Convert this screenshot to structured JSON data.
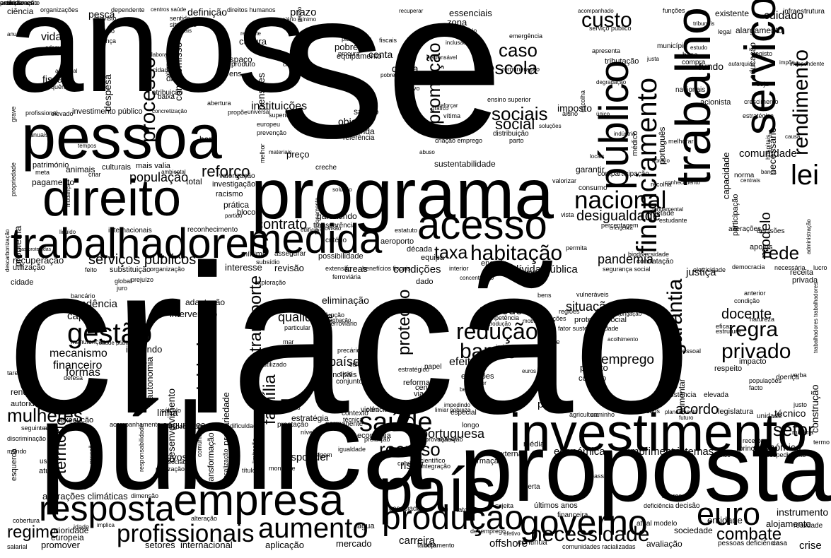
{
  "words": [
    {
      "text": "criação"
    },
    {
      "text": "se"
    },
    {
      "text": "anos"
    },
    {
      "text": "pública"
    },
    {
      "text": "proposta"
    },
    {
      "text": "programa"
    },
    {
      "text": "pessoa"
    },
    {
      "text": "direito"
    },
    {
      "text": "serviço"
    },
    {
      "text": "trabalho"
    },
    {
      "text": "país"
    },
    {
      "text": "investimento"
    },
    {
      "text": "trabalhadores"
    },
    {
      "text": "medida"
    },
    {
      "text": "acesso"
    },
    {
      "text": "empresa"
    },
    {
      "text": "resposta"
    },
    {
      "text": "público"
    },
    {
      "text": "produção"
    },
    {
      "text": "governo"
    },
    {
      "text": "aumento"
    },
    {
      "text": "profissionais"
    },
    {
      "text": "necessidade"
    },
    {
      "text": "euro"
    },
    {
      "text": "saúde"
    },
    {
      "text": "redução"
    },
    {
      "text": "gestão"
    },
    {
      "text": "financiamento"
    },
    {
      "text": "lei"
    },
    {
      "text": "nacional"
    },
    {
      "text": "rendimento"
    },
    {
      "text": "habitação"
    },
    {
      "text": "garantia"
    },
    {
      "text": "banco"
    },
    {
      "text": "regra"
    },
    {
      "text": "privado"
    },
    {
      "text": "custo"
    },
    {
      "text": "sociais"
    },
    {
      "text": "processo"
    },
    {
      "text": "setor"
    },
    {
      "text": "rede"
    },
    {
      "text": "mulheres"
    },
    {
      "text": "regime"
    },
    {
      "text": "recurso"
    },
    {
      "text": "combate"
    },
    {
      "text": "atividade"
    },
    {
      "text": "transporte"
    },
    {
      "text": "família"
    },
    {
      "text": "promoção"
    },
    {
      "text": "proteção"
    },
    {
      "text": "caso"
    },
    {
      "text": "escola"
    },
    {
      "text": "social"
    },
    {
      "text": "taxa"
    },
    {
      "text": "contrato"
    },
    {
      "text": "reforço"
    },
    {
      "text": "população"
    },
    {
      "text": "serviços públicos"
    },
    {
      "text": "modelo"
    },
    {
      "text": "acordo"
    },
    {
      "text": "território"
    },
    {
      "text": "docente"
    },
    {
      "text": "emprego"
    },
    {
      "text": "portuguesa"
    },
    {
      "text": "países"
    },
    {
      "text": "efeito"
    },
    {
      "text": "desigualdade"
    },
    {
      "text": "pandemia"
    },
    {
      "text": "situação"
    },
    {
      "text": "período"
    },
    {
      "text": "qualidade"
    },
    {
      "text": "eliminação"
    },
    {
      "text": "mecanismo"
    },
    {
      "text": "financeiro"
    },
    {
      "text": "formas"
    },
    {
      "text": "dependência"
    },
    {
      "text": "capital"
    },
    {
      "text": "crise"
    },
    {
      "text": "comunidade"
    },
    {
      "text": "condições"
    },
    {
      "text": "dívida pública"
    },
    {
      "text": "justiça"
    },
    {
      "text": "plano"
    },
    {
      "text": "económica"
    },
    {
      "text": "cumprimento"
    },
    {
      "text": "sistemas"
    },
    {
      "text": "económico"
    },
    {
      "text": "técnico"
    },
    {
      "text": "construção"
    },
    {
      "text": "instrumento"
    },
    {
      "text": "alojamento"
    },
    {
      "text": "carreira"
    },
    {
      "text": "offshore"
    },
    {
      "text": "mercado"
    },
    {
      "text": "aplicação"
    },
    {
      "text": "internacional"
    },
    {
      "text": "setores"
    },
    {
      "text": "promover"
    },
    {
      "text": "europeia"
    },
    {
      "text": "prioridade"
    },
    {
      "text": "alterações climáticas"
    },
    {
      "text": "entidade"
    },
    {
      "text": "sociedade"
    },
    {
      "text": "avaliação"
    },
    {
      "text": "responder"
    },
    {
      "text": "risco"
    },
    {
      "text": "ativos"
    },
    {
      "text": "segurança"
    },
    {
      "text": "linha"
    },
    {
      "text": "autonomia"
    },
    {
      "text": "desenvolvimento"
    },
    {
      "text": "precariedade"
    },
    {
      "text": "transformação"
    },
    {
      "text": "incluindo"
    },
    {
      "text": "intervenção"
    },
    {
      "text": "adaptação"
    },
    {
      "text": "revisão"
    },
    {
      "text": "interesse"
    },
    {
      "text": "áreas"
    },
    {
      "text": "recuperação"
    },
    {
      "text": "utilização"
    },
    {
      "text": "substituição"
    },
    {
      "text": "mínimo"
    },
    {
      "text": "reconhecimento"
    },
    {
      "text": "internacionais"
    },
    {
      "text": "problema"
    },
    {
      "text": "pagamento"
    },
    {
      "text": "animais"
    },
    {
      "text": "culturais"
    },
    {
      "text": "mais valia"
    },
    {
      "text": "património"
    },
    {
      "text": "total"
    },
    {
      "text": "investigação"
    },
    {
      "text": "racismo"
    },
    {
      "text": "prática"
    },
    {
      "text": "bloco"
    },
    {
      "text": "preço"
    },
    {
      "text": "garantindo"
    },
    {
      "text": "transparência"
    },
    {
      "text": "instituições"
    },
    {
      "text": "salário"
    },
    {
      "text": "objetivo"
    },
    {
      "text": "venda"
    },
    {
      "text": "referência"
    },
    {
      "text": "compromisso"
    },
    {
      "text": "despesa"
    },
    {
      "text": "fiscal"
    },
    {
      "text": "vida"
    },
    {
      "text": "meios"
    },
    {
      "text": "ciência"
    },
    {
      "text": "pesca"
    },
    {
      "text": "definição"
    },
    {
      "text": "prazo"
    },
    {
      "text": "cultura"
    },
    {
      "text": "espaço"
    },
    {
      "text": "jovens"
    },
    {
      "text": "pensões"
    },
    {
      "text": "produto"
    },
    {
      "text": "conta"
    },
    {
      "text": "dívida"
    },
    {
      "text": "pobreza"
    },
    {
      "text": "equipamento"
    },
    {
      "text": "essenciais"
    },
    {
      "text": "zona"
    },
    {
      "text": "imposto"
    },
    {
      "text": "garantir"
    },
    {
      "text": "consumo"
    },
    {
      "text": "cuidado"
    },
    {
      "text": "fundo"
    },
    {
      "text": "educação"
    },
    {
      "text": "capacidade"
    },
    {
      "text": "participação"
    },
    {
      "text": "necessário"
    },
    {
      "text": "apoios"
    },
    {
      "text": "receita"
    },
    {
      "text": "privada"
    },
    {
      "text": "corte"
    },
    {
      "text": "sustentabilidade"
    },
    {
      "text": "distribuição"
    },
    {
      "text": "dado"
    },
    {
      "text": "energia"
    },
    {
      "text": "equipa"
    },
    {
      "text": "década"
    },
    {
      "text": "aeroporto"
    },
    {
      "text": "reforma"
    },
    {
      "text": "centro"
    },
    {
      "text": "via"
    },
    {
      "text": "relatório"
    },
    {
      "text": "conjunto"
    },
    {
      "text": "principais"
    },
    {
      "text": "emissões"
    },
    {
      "text": "papel"
    },
    {
      "text": "projeto"
    },
    {
      "text": "controlo"
    },
    {
      "text": "aumentar"
    },
    {
      "text": "respeito"
    },
    {
      "text": "impacto"
    },
    {
      "text": "elevada"
    },
    {
      "text": "existência"
    },
    {
      "text": "contexto"
    },
    {
      "text": "estratégia"
    },
    {
      "text": "permanente"
    },
    {
      "text": "prestação"
    },
    {
      "text": "longo"
    },
    {
      "text": "economia"
    },
    {
      "text": "violência"
    },
    {
      "text": "especial"
    },
    {
      "text": "formação"
    },
    {
      "text": "externa"
    },
    {
      "text": "média"
    },
    {
      "text": "oferta"
    },
    {
      "text": "legislatura"
    },
    {
      "text": "unidade"
    },
    {
      "text": "princípio"
    },
    {
      "text": "recente"
    },
    {
      "text": "termo"
    },
    {
      "text": "fatores"
    },
    {
      "text": "associada"
    },
    {
      "text": "água"
    },
    {
      "text": "últimos anos"
    },
    {
      "text": "financeira"
    },
    {
      "text": "continua"
    },
    {
      "text": "tabela"
    },
    {
      "text": "orçamento"
    },
    {
      "text": "comunidades racializadas"
    },
    {
      "text": "pessoas deficiência"
    },
    {
      "text": "casa"
    },
    {
      "text": "decisão"
    },
    {
      "text": "atual modelo"
    },
    {
      "text": "realidade"
    },
    {
      "text": "doença"
    },
    {
      "text": "execução"
    },
    {
      "text": "discriminação"
    },
    {
      "text": "mundo"
    },
    {
      "text": "uso"
    },
    {
      "text": "atuais"
    },
    {
      "text": "esquerda"
    },
    {
      "text": "renda"
    },
    {
      "text": "autoridade"
    },
    {
      "text": "cidade"
    },
    {
      "text": "tarefa"
    },
    {
      "text": "atribuição"
    },
    {
      "text": "baixa"
    },
    {
      "text": "dia"
    },
    {
      "text": "hora"
    },
    {
      "text": "creche"
    },
    {
      "text": "criar"
    },
    {
      "text": "meta"
    },
    {
      "text": "critério"
    },
    {
      "text": "possibilidade"
    },
    {
      "text": "assegurar"
    },
    {
      "text": "metade"
    },
    {
      "text": "norma"
    },
    {
      "text": "tributação"
    },
    {
      "text": "comparticipação"
    },
    {
      "text": "contratação"
    },
    {
      "text": "estudante"
    },
    {
      "text": "valorização"
    },
    {
      "text": "nacionais"
    },
    {
      "text": "acionista"
    },
    {
      "text": "base"
    },
    {
      "text": "compra"
    },
    {
      "text": "município"
    },
    {
      "text": "português"
    },
    {
      "text": "médico"
    },
    {
      "text": "existente"
    },
    {
      "text": "infraestrutura"
    },
    {
      "text": "alargamento"
    },
    {
      "text": "tribunais"
    },
    {
      "text": "legal"
    },
    {
      "text": "hospitais"
    },
    {
      "text": "registo"
    },
    {
      "text": "impõe"
    },
    {
      "text": "seja"
    },
    {
      "text": "crescimento"
    },
    {
      "text": "estratégica"
    },
    {
      "text": "melhorar"
    },
    {
      "text": "valores"
    },
    {
      "text": "passa"
    },
    {
      "text": "deficiência"
    },
    {
      "text": "sujeita"
    },
    {
      "text": "desemprego"
    },
    {
      "text": "efetivo"
    },
    {
      "text": "gráfico"
    },
    {
      "text": "ensino superior"
    },
    {
      "text": "procura"
    },
    {
      "text": "remuneração"
    },
    {
      "text": "emergência"
    },
    {
      "text": "agrícola"
    },
    {
      "text": "bens"
    },
    {
      "text": "vulneráveis"
    },
    {
      "text": "conversão"
    },
    {
      "text": "proteção social"
    },
    {
      "text": "habitações"
    },
    {
      "text": "regiões"
    },
    {
      "text": "assente"
    },
    {
      "text": "imigrante"
    },
    {
      "text": "escolha"
    },
    {
      "text": "pessoal"
    },
    {
      "text": "verba"
    },
    {
      "text": "populações"
    },
    {
      "text": "facto"
    },
    {
      "text": "condição"
    },
    {
      "text": "anterior"
    },
    {
      "text": "natureza"
    },
    {
      "text": "eficaz"
    },
    {
      "text": "estrutura"
    },
    {
      "text": "lucro"
    },
    {
      "text": "trabalhadores trabalhadores"
    },
    {
      "text": "justo"
    },
    {
      "text": "regionais"
    },
    {
      "text": "obra"
    },
    {
      "text": "fundamental"
    },
    {
      "text": "alterações"
    },
    {
      "text": "decisões"
    },
    {
      "text": "administração"
    },
    {
      "text": "percentagem"
    },
    {
      "text": "energética"
    },
    {
      "text": "vista"
    },
    {
      "text": "democracia"
    },
    {
      "text": "permita"
    },
    {
      "text": "biodiversidade"
    },
    {
      "text": "eletricidade"
    },
    {
      "text": "necessária"
    },
    {
      "text": "segurança social"
    },
    {
      "text": "interior"
    },
    {
      "text": "benefícios fiscais"
    },
    {
      "text": "extensão"
    },
    {
      "text": "subsídio"
    },
    {
      "text": "exploração"
    },
    {
      "text": "ferroviária"
    },
    {
      "text": "função"
    },
    {
      "text": "ferroviário"
    },
    {
      "text": "particular"
    },
    {
      "text": "mar"
    },
    {
      "text": "precário"
    },
    {
      "text": "cultural"
    },
    {
      "text": "ciclo"
    },
    {
      "text": "estratégico"
    },
    {
      "text": "utilizado"
    },
    {
      "text": "cálculo"
    },
    {
      "text": "cuidados saúde"
    },
    {
      "text": "dificuldade"
    },
    {
      "text": "técnica"
    },
    {
      "text": "níveis"
    },
    {
      "text": "igualdade"
    },
    {
      "text": "combater"
    },
    {
      "text": "origem"
    },
    {
      "text": "científico"
    },
    {
      "text": "integração"
    },
    {
      "text": "aprovação"
    },
    {
      "text": "transição"
    },
    {
      "text": "proibição"
    },
    {
      "text": "montante"
    },
    {
      "text": "título"
    },
    {
      "text": "limitação"
    },
    {
      "text": "fiscalização"
    },
    {
      "text": "comunitário"
    },
    {
      "text": "responsabilidade"
    },
    {
      "text": "associado"
    },
    {
      "text": "realização"
    },
    {
      "text": "pressão"
    },
    {
      "text": "acompanhamento"
    },
    {
      "text": "dimensão"
    },
    {
      "text": "atraso"
    },
    {
      "text": "alteração"
    },
    {
      "text": "idade"
    },
    {
      "text": "implica"
    },
    {
      "text": "cobertura"
    },
    {
      "text": "salarial"
    },
    {
      "text": "seguinte"
    },
    {
      "text": "ação"
    },
    {
      "text": "defesa"
    },
    {
      "text": "manutenção"
    },
    {
      "text": "saúde pública"
    },
    {
      "text": "bancário"
    },
    {
      "text": "prejuízo"
    },
    {
      "text": "juro"
    },
    {
      "text": "global"
    },
    {
      "text": "feito"
    },
    {
      "text": "organização"
    },
    {
      "text": "liquido"
    },
    {
      "text": "áreas protegidas"
    },
    {
      "text": "descarbonização"
    },
    {
      "text": "mudança"
    },
    {
      "text": "ambiental"
    },
    {
      "text": "propriedade"
    },
    {
      "text": "grave"
    },
    {
      "text": "anual"
    },
    {
      "text": "profissional"
    },
    {
      "text": "elevado"
    },
    {
      "text": "investimento público"
    },
    {
      "text": "concretização"
    },
    {
      "text": "propõe"
    },
    {
      "text": "universal"
    },
    {
      "text": "superior"
    },
    {
      "text": "europeu"
    },
    {
      "text": "prevenção"
    },
    {
      "text": "luta"
    },
    {
      "text": "melhor"
    },
    {
      "text": "materiais"
    },
    {
      "text": "tempos"
    },
    {
      "text": "anuais"
    },
    {
      "text": "organizações"
    },
    {
      "text": "centros saúde"
    },
    {
      "text": "dependente"
    },
    {
      "text": "direitos humanos"
    },
    {
      "text": "salário mínimo"
    },
    {
      "text": "previsto"
    },
    {
      "text": "sentido"
    },
    {
      "text": "situações"
    },
    {
      "text": "laborais"
    },
    {
      "text": "âmbito"
    },
    {
      "text": "criança"
    },
    {
      "text": "adequado"
    },
    {
      "text": "adicional"
    },
    {
      "text": "consequência"
    },
    {
      "text": "plataforma"
    },
    {
      "text": "fiscais"
    },
    {
      "text": "recuperar"
    },
    {
      "text": "acompanhado"
    },
    {
      "text": "serviço público"
    },
    {
      "text": "funções"
    },
    {
      "text": "negócio"
    },
    {
      "text": "restante"
    },
    {
      "text": "alternativa"
    },
    {
      "text": "laboral"
    },
    {
      "text": "cidadão"
    },
    {
      "text": "abertura"
    },
    {
      "text": "criado"
    },
    {
      "text": "passo"
    },
    {
      "text": "pobre"
    },
    {
      "text": "coletivo"
    },
    {
      "text": "responsável"
    },
    {
      "text": "inclusão"
    },
    {
      "text": "apresenta"
    },
    {
      "text": "justa"
    },
    {
      "text": "estudo"
    },
    {
      "text": "autarquias"
    },
    {
      "text": "independente"
    },
    {
      "text": "degradação"
    },
    {
      "text": "aluno"
    },
    {
      "text": "único"
    },
    {
      "text": "reforçar"
    },
    {
      "text": "vítima"
    },
    {
      "text": "sustentável"
    },
    {
      "text": "soluções"
    },
    {
      "text": "parto"
    },
    {
      "text": "abuso"
    },
    {
      "text": "criação emprego"
    },
    {
      "text": "indústria"
    },
    {
      "text": "locais"
    },
    {
      "text": "horário"
    },
    {
      "text": "banca"
    },
    {
      "text": "centrais"
    },
    {
      "text": "valorizar"
    },
    {
      "text": "recolha"
    },
    {
      "text": "conhecimento"
    },
    {
      "text": "solução"
    },
    {
      "text": "funcionamento"
    },
    {
      "text": "provisão"
    },
    {
      "text": "estatuto"
    },
    {
      "text": "edifício"
    },
    {
      "text": "partido"
    },
    {
      "text": "impedindo"
    },
    {
      "text": "planeamento"
    },
    {
      "text": "agricultura"
    },
    {
      "text": "caminho"
    },
    {
      "text": "cidadãos"
    },
    {
      "text": "futuro"
    },
    {
      "text": "competência"
    },
    {
      "text": "introdução"
    },
    {
      "text": "mobilidade"
    },
    {
      "text": "fator sustentabilidade"
    },
    {
      "text": "obrigação"
    },
    {
      "text": "acolhimento"
    },
    {
      "text": "euros ano"
    },
    {
      "text": "limiar pobreza"
    },
    {
      "text": "proteger"
    },
    {
      "text": "benefício"
    },
    {
      "text": "estagnação"
    },
    {
      "text": "concentração"
    },
    {
      "text": "causa"
    },
    {
      "text": "defice"
    },
    {
      "text": "despedimento"
    },
    {
      "text": "matéria"
    },
    {
      "text": "extinção"
    },
    {
      "text": "ensino"
    },
    {
      "text": "professores"
    },
    {
      "text": "arrendamento"
    },
    {
      "text": "consideração"
    }
  ]
}
